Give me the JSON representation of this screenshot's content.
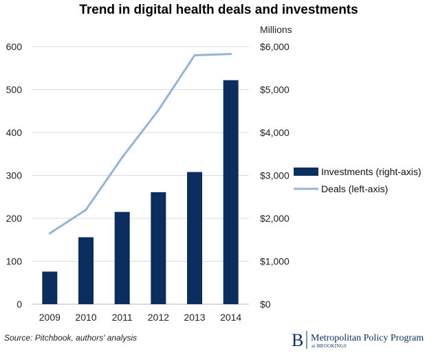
{
  "chart_data": {
    "type": "bar+line",
    "title": "Trend in digital health deals and investments",
    "right_axis_unit_label": "Millions",
    "categories": [
      "2009",
      "2010",
      "2011",
      "2012",
      "2013",
      "2014"
    ],
    "series": [
      {
        "name": "Investments (right-axis)",
        "type": "bar",
        "axis": "right",
        "color": "#0b2e5e",
        "values": [
          760,
          1560,
          2150,
          2610,
          3080,
          5220
        ]
      },
      {
        "name": "Deals (left-axis)",
        "type": "line",
        "axis": "left",
        "color": "#95b3d7",
        "values": [
          165,
          220,
          342,
          452,
          580,
          583
        ]
      }
    ],
    "left_axis": {
      "ylim": [
        0,
        600
      ],
      "ticks": [
        "0",
        "100",
        "200",
        "300",
        "400",
        "500",
        "600"
      ]
    },
    "right_axis": {
      "ylim": [
        0,
        6000
      ],
      "ticks": [
        "$0",
        "$1,000",
        "$2,000",
        "$3,000",
        "$4,000",
        "$5,000",
        "$6,000"
      ]
    },
    "grid": true,
    "legend_position": "right"
  },
  "footer": {
    "source": "Source: Pitchbook, authors' analysis",
    "brand_letter": "B",
    "brand_name": "Metropolitan Policy Program",
    "brand_sub": "at BROOKINGS"
  }
}
